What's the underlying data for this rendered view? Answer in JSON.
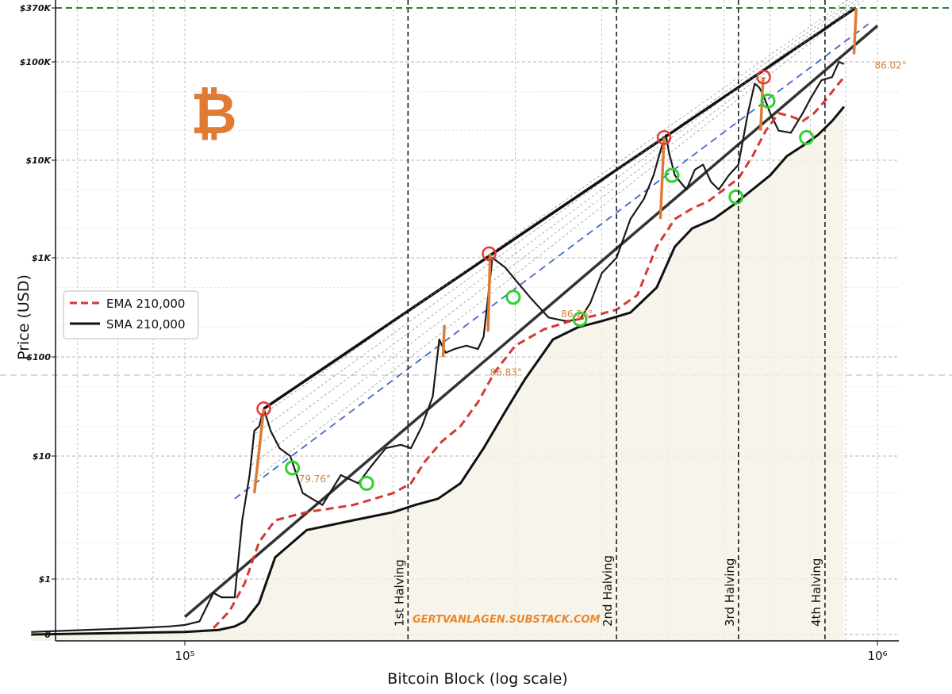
{
  "chart_data": {
    "type": "line",
    "xlabel": "Bitcoin Block (log scale)",
    "ylabel": "Price (USD)",
    "x_scale": "log",
    "y_scale": "log",
    "x_ticks": [
      {
        "value": 100000,
        "label": "10⁵"
      },
      {
        "value": 1000000,
        "label": "10⁶"
      }
    ],
    "y_ticks": [
      {
        "value": 0,
        "label": "0"
      },
      {
        "value": 1,
        "label": "$1"
      },
      {
        "value": 10,
        "label": "$10"
      },
      {
        "value": 100,
        "label": "$100"
      },
      {
        "value": 1000,
        "label": "$1K"
      },
      {
        "value": 10000,
        "label": "$10K"
      },
      {
        "value": 100000,
        "label": "$100K"
      },
      {
        "value": 370000,
        "label": "$370K"
      }
    ],
    "grid": true,
    "legend": {
      "placement": "center-left",
      "entries": [
        {
          "name": "EMA 210,000",
          "style": "dashed",
          "color": "#d43a32"
        },
        {
          "name": "SMA 210,000",
          "style": "solid",
          "color": "#111111"
        }
      ]
    },
    "halvings": [
      {
        "label": "1st Halving",
        "block": 210000
      },
      {
        "label": "2nd Halving",
        "block": 420000
      },
      {
        "label": "3rd Halving",
        "block": 630000
      },
      {
        "label": "4th Halving",
        "block": 840000
      }
    ],
    "target_line": {
      "value": 370000,
      "label": "$370K",
      "color": "#2e7d32"
    },
    "angle_labels": [
      "79.76°",
      "86.83°",
      "86.26°",
      "86.02°"
    ],
    "watermark": "GERTVANLAGEN.SUBSTACK.COM",
    "logo": "₿",
    "series": [
      {
        "name": "Price",
        "color": "#1a1a1a",
        "x": [
          60000,
          85000,
          95000,
          100000,
          105000,
          110000,
          113000,
          118000,
          121000,
          124000,
          126000,
          128000,
          130000,
          133000,
          137000,
          142000,
          148000,
          158000,
          168000,
          178000,
          185000,
          195000,
          205000,
          212000,
          220000,
          228000,
          233000,
          238000,
          245000,
          255000,
          265000,
          270000,
          278000,
          290000,
          300000,
          315000,
          335000,
          355000,
          372000,
          385000,
          400000,
          420000,
          440000,
          460000,
          475000,
          487000,
          495000,
          500000,
          510000,
          530000,
          545000,
          560000,
          575000,
          590000,
          610000,
          630000,
          650000,
          665000,
          675000,
          685000,
          700000,
          720000,
          750000,
          780000,
          800000,
          830000,
          860000,
          880000,
          895000
        ],
        "y": [
          0.06,
          0.08,
          0.09,
          0.1,
          0.12,
          0.5,
          0.4,
          0.4,
          3,
          7,
          18,
          20,
          30,
          18,
          12,
          10,
          5,
          4,
          7,
          6,
          8,
          12,
          13,
          12,
          20,
          40,
          150,
          110,
          120,
          130,
          120,
          160,
          1000,
          800,
          600,
          400,
          250,
          230,
          240,
          350,
          700,
          1000,
          2500,
          4000,
          7000,
          13000,
          18000,
          12000,
          7000,
          5000,
          8000,
          9000,
          6000,
          5000,
          7000,
          9000,
          30000,
          60000,
          55000,
          45000,
          30000,
          20000,
          19000,
          30000,
          42000,
          65000,
          70000,
          100000,
          95000
        ]
      },
      {
        "name": "EMA 210,000",
        "color": "#d43a32",
        "x": [
          110000,
          116000,
          122000,
          128000,
          135000,
          150000,
          175000,
          200000,
          212000,
          222000,
          235000,
          250000,
          265000,
          280000,
          300000,
          330000,
          360000,
          390000,
          420000,
          450000,
          480000,
          510000,
          540000,
          570000,
          600000,
          630000,
          660000,
          690000,
          720000,
          750000,
          780000,
          810000,
          840000,
          870000,
          895000
        ],
        "y": [
          0.08,
          0.2,
          0.8,
          2,
          3,
          3.5,
          4,
          5,
          6,
          9,
          14,
          20,
          35,
          70,
          130,
          190,
          230,
          260,
          300,
          420,
          1300,
          2500,
          3200,
          3800,
          5000,
          6500,
          11000,
          20000,
          30000,
          28000,
          25000,
          30000,
          40000,
          55000,
          70000
        ]
      },
      {
        "name": "SMA 210,000",
        "color": "#111111",
        "x": [
          60000,
          100000,
          112000,
          118000,
          122000,
          128000,
          135000,
          150000,
          175000,
          200000,
          215000,
          232000,
          250000,
          270000,
          290000,
          310000,
          340000,
          370000,
          400000,
          440000,
          480000,
          510000,
          540000,
          580000,
          620000,
          660000,
          700000,
          740000,
          780000,
          820000,
          860000,
          895000
        ],
        "y": [
          0.05,
          0.06,
          0.07,
          0.09,
          0.12,
          0.3,
          1.5,
          2.5,
          3.0,
          3.5,
          4.0,
          4.5,
          6,
          12,
          28,
          60,
          150,
          200,
          230,
          280,
          500,
          1300,
          2000,
          2500,
          3500,
          5000,
          7000,
          11000,
          14000,
          18000,
          25000,
          35000
        ]
      }
    ],
    "bands": [
      {
        "name": "upper",
        "color": "#111111",
        "from": {
          "x": 130000,
          "y": 30
        },
        "to": {
          "x": 930000,
          "y": 370000
        }
      },
      {
        "name": "lower",
        "color": "#333333",
        "from": {
          "x": 100000,
          "y": 0.15
        },
        "to": {
          "x": 1000000,
          "y": 240000
        }
      },
      {
        "name": "mid",
        "color": "#4668c6",
        "from": {
          "x": 118000,
          "y": 4.5
        },
        "to": {
          "x": 970000,
          "y": 250000
        }
      }
    ],
    "tops": [
      {
        "x": 130000,
        "y": 30
      },
      {
        "x": 275000,
        "y": 1100
      },
      {
        "x": 492000,
        "y": 17000
      },
      {
        "x": 685000,
        "y": 70000
      }
    ],
    "bottoms": [
      {
        "x": 143000,
        "y": 8
      },
      {
        "x": 183000,
        "y": 6
      },
      {
        "x": 298000,
        "y": 400
      },
      {
        "x": 372000,
        "y": 240
      },
      {
        "x": 505000,
        "y": 7000
      },
      {
        "x": 625000,
        "y": 4200
      },
      {
        "x": 695000,
        "y": 40000
      },
      {
        "x": 790000,
        "y": 17000
      }
    ],
    "pumps": [
      {
        "x0": 126000,
        "y0": 5,
        "x1": 130000,
        "y1": 30
      },
      {
        "x0": 236000,
        "y0": 100,
        "x1": 237000,
        "y1": 210
      },
      {
        "x0": 274000,
        "y0": 180,
        "x1": 276000,
        "y1": 1100
      },
      {
        "x0": 486000,
        "y0": 2500,
        "x1": 492000,
        "y1": 17000
      },
      {
        "x0": 678000,
        "y0": 20000,
        "x1": 684000,
        "y1": 70000
      },
      {
        "x0": 925000,
        "y0": 120000,
        "x1": 932000,
        "y1": 370000
      }
    ]
  }
}
